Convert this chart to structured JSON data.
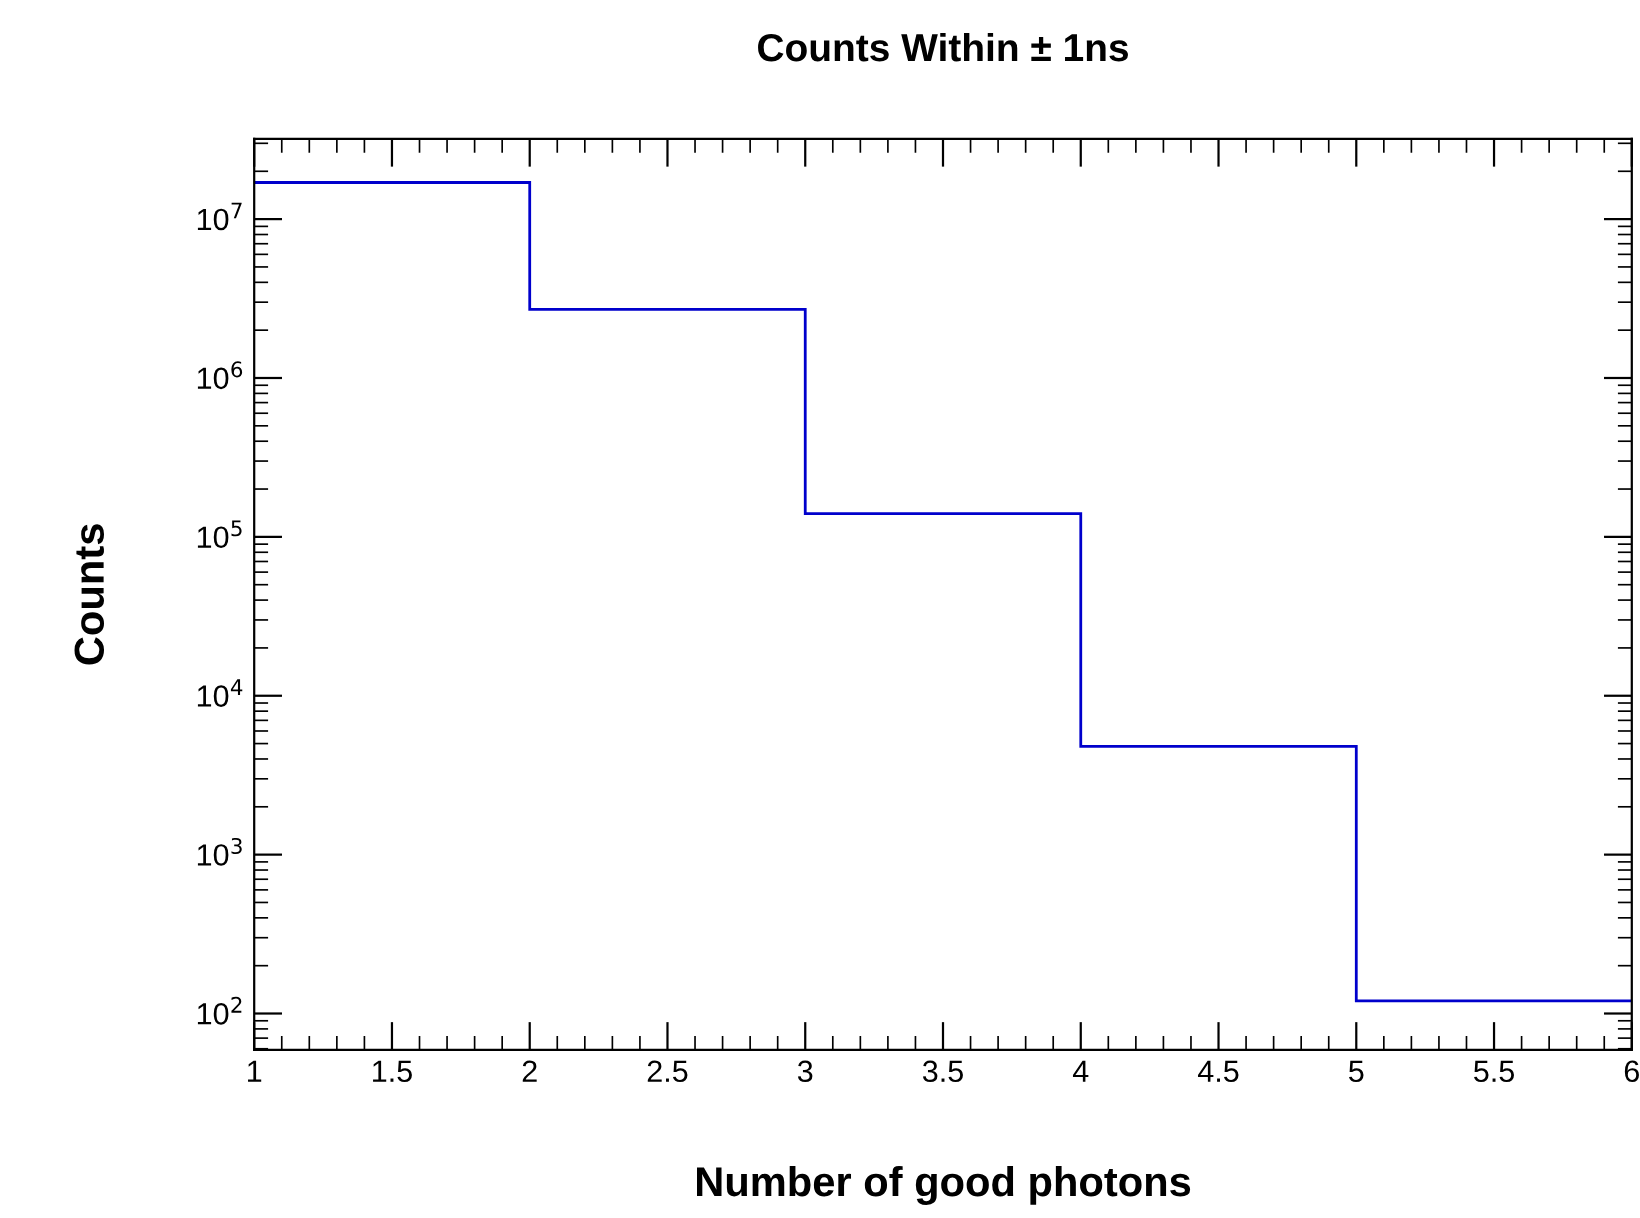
{
  "chart_data": {
    "type": "histogram",
    "title": "Counts Within ± 1ns",
    "xlabel": "Number of good photons",
    "ylabel": "Counts",
    "bins": [
      1,
      2,
      3,
      4,
      5,
      6
    ],
    "values": [
      17000000,
      2700000,
      140000,
      4800,
      120
    ],
    "color": "#0000cc",
    "log": "y",
    "xlim": [
      1,
      6
    ],
    "xticks": [
      1,
      1.5,
      2,
      2.5,
      3,
      3.5,
      4,
      4.5,
      5,
      5.5,
      6
    ],
    "ylim": [
      59,
      32000000
    ],
    "yticks": [
      {
        "value": 100,
        "label": "10$^{2}$"
      },
      {
        "value": 1000,
        "label": "10$^{3}$"
      },
      {
        "value": 10000,
        "label": "10$^{4}$"
      },
      {
        "value": 100000,
        "label": "10$^{5}$"
      },
      {
        "value": 1000000,
        "label": "10$^{6}$"
      },
      {
        "value": 10000000,
        "label": "10$^{7}$"
      }
    ],
    "grid": false,
    "legend": false
  }
}
